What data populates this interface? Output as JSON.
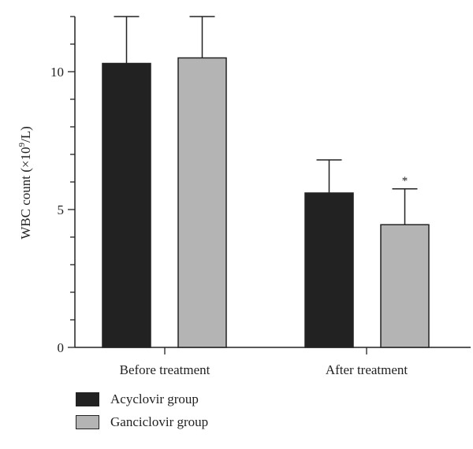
{
  "chart_data": {
    "type": "bar",
    "categories": [
      "Before treatment",
      "After treatment"
    ],
    "series": [
      {
        "name": "Acyclovir group",
        "color": "#222222",
        "values": [
          10.3,
          5.6
        ],
        "error": [
          1.7,
          1.2
        ]
      },
      {
        "name": "Ganciclovir group",
        "color": "#b4b4b4",
        "values": [
          10.5,
          4.45
        ],
        "error": [
          1.5,
          1.3
        ]
      }
    ],
    "ylabel_main": "WBC count (×10",
    "ylabel_sup": "9",
    "ylabel_end": "/L)",
    "yticks": [
      0,
      5,
      10
    ],
    "ylim": [
      0,
      12
    ],
    "annotations": [
      {
        "category": 1,
        "series": 1,
        "text": "*"
      }
    ],
    "legend_position": "bottom-left"
  }
}
